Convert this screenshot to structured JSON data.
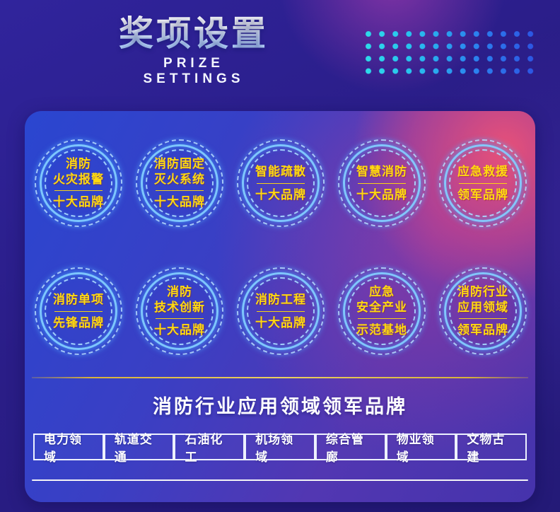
{
  "header": {
    "title": "奖项设置",
    "subtitle": "PRIZE SETTINGS"
  },
  "badges": [
    {
      "line1": "消防\n火灾报警",
      "line2": "十大品牌"
    },
    {
      "line1": "消防固定\n灭火系统",
      "line2": "十大品牌"
    },
    {
      "line1": "智能疏散",
      "line2": "十大品牌"
    },
    {
      "line1": "智慧消防",
      "line2": "十大品牌"
    },
    {
      "line1": "应急救援",
      "line2": "领军品牌"
    },
    {
      "line1": "消防单项",
      "line2": "先锋品牌"
    },
    {
      "line1": "消防\n技术创新",
      "line2": "十大品牌"
    },
    {
      "line1": "消防工程",
      "line2": "十大品牌"
    },
    {
      "line1": "应急\n安全产业",
      "line2": "示范基地"
    },
    {
      "line1": "消防行业\n应用领域",
      "line2": "领军品牌"
    }
  ],
  "section": {
    "heading": "消防行业应用领域领军品牌",
    "buttons": [
      "电力领域",
      "轨道交通",
      "石油化工",
      "机场领域",
      "综合管廊",
      "物业领域",
      "文物古建"
    ]
  },
  "colors": {
    "badge_text": "#ffd90f",
    "ring_neon": "#82cdff",
    "gold_line": "#d9b23a",
    "panel_blue": "#2a46d0",
    "panel_pink": "#ee5276",
    "background": "#2a1d87",
    "dot_start": "#2edde9",
    "dot_end": "#2c53e2"
  }
}
